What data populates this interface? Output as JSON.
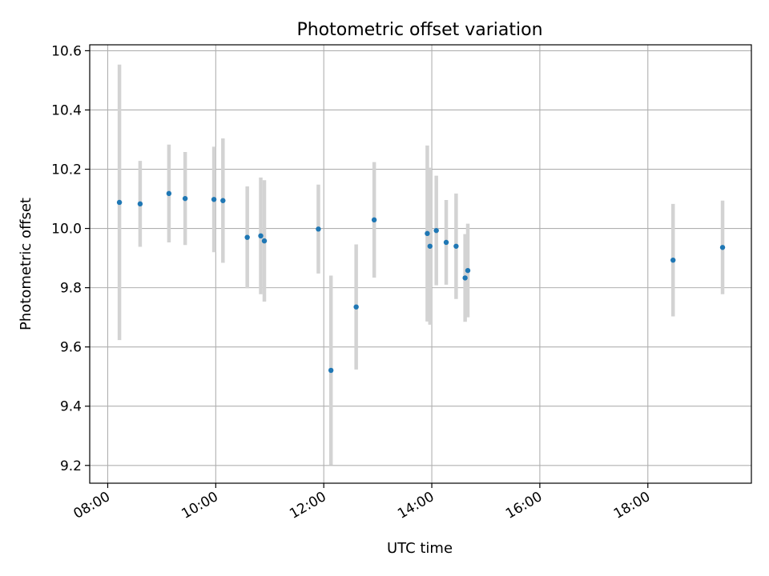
{
  "chart_data": {
    "type": "scatter",
    "title": "Photometric offset variation",
    "xlabel": "UTC time",
    "ylabel": "Photometric offset",
    "x_ticks": [
      "08:00",
      "10:00",
      "12:00",
      "14:00",
      "16:00",
      "18:00"
    ],
    "y_ticks": [
      "9.2",
      "9.4",
      "9.6",
      "9.8",
      "10.0",
      "10.2",
      "10.4",
      "10.6"
    ],
    "xlim": [
      "07:40",
      "19:55"
    ],
    "ylim": [
      9.14,
      10.62
    ],
    "grid": true,
    "series": [
      {
        "points": [
          {
            "time": "08:13",
            "y": 10.088,
            "err": 0.465
          },
          {
            "time": "08:36",
            "y": 10.083,
            "err": 0.145
          },
          {
            "time": "09:08",
            "y": 10.118,
            "err": 0.165
          },
          {
            "time": "09:26",
            "y": 10.101,
            "err": 0.157
          },
          {
            "time": "09:58",
            "y": 10.098,
            "err": 0.178
          },
          {
            "time": "10:08",
            "y": 10.094,
            "err": 0.21
          },
          {
            "time": "10:35",
            "y": 9.97,
            "err": 0.172
          },
          {
            "time": "10:50",
            "y": 9.975,
            "err": 0.197
          },
          {
            "time": "10:54",
            "y": 9.958,
            "err": 0.205
          },
          {
            "time": "11:54",
            "y": 9.998,
            "err": 0.15
          },
          {
            "time": "12:08",
            "y": 9.521,
            "err": 0.32
          },
          {
            "time": "12:36",
            "y": 9.735,
            "err": 0.211
          },
          {
            "time": "12:56",
            "y": 10.029,
            "err": 0.195
          },
          {
            "time": "13:55",
            "y": 9.983,
            "err": 0.297
          },
          {
            "time": "13:58",
            "y": 9.94,
            "err": 0.265
          },
          {
            "time": "14:05",
            "y": 9.993,
            "err": 0.185
          },
          {
            "time": "14:16",
            "y": 9.953,
            "err": 0.143
          },
          {
            "time": "14:27",
            "y": 9.94,
            "err": 0.178
          },
          {
            "time": "14:37",
            "y": 9.833,
            "err": 0.148
          },
          {
            "time": "14:40",
            "y": 9.858,
            "err": 0.158
          },
          {
            "time": "18:28",
            "y": 9.893,
            "err": 0.19
          },
          {
            "time": "19:23",
            "y": 9.936,
            "err": 0.158
          }
        ]
      }
    ]
  },
  "colors": {
    "marker": "#1f77b4",
    "errorbar": "#d3d3d3",
    "grid": "#b0b0b0",
    "axes": "#000000"
  }
}
